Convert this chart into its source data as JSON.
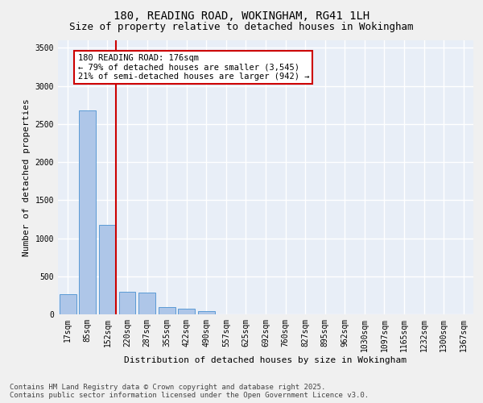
{
  "title": "180, READING ROAD, WOKINGHAM, RG41 1LH",
  "subtitle": "Size of property relative to detached houses in Wokingham",
  "xlabel": "Distribution of detached houses by size in Wokingham",
  "ylabel": "Number of detached properties",
  "categories": [
    "17sqm",
    "85sqm",
    "152sqm",
    "220sqm",
    "287sqm",
    "355sqm",
    "422sqm",
    "490sqm",
    "557sqm",
    "625sqm",
    "692sqm",
    "760sqm",
    "827sqm",
    "895sqm",
    "962sqm",
    "1030sqm",
    "1097sqm",
    "1165sqm",
    "1232sqm",
    "1300sqm",
    "1367sqm"
  ],
  "values": [
    260,
    2680,
    1180,
    300,
    290,
    100,
    70,
    45,
    0,
    0,
    0,
    0,
    0,
    0,
    0,
    0,
    0,
    0,
    0,
    0,
    0
  ],
  "bar_color": "#aec6e8",
  "bar_edge_color": "#5b9bd5",
  "vline_x_index": 2.42,
  "vline_color": "#cc0000",
  "annotation_text": "180 READING ROAD: 176sqm\n← 79% of detached houses are smaller (3,545)\n21% of semi-detached houses are larger (942) →",
  "annotation_box_color": "#ffffff",
  "annotation_box_edge_color": "#cc0000",
  "ylim": [
    0,
    3600
  ],
  "yticks": [
    0,
    500,
    1000,
    1500,
    2000,
    2500,
    3000,
    3500
  ],
  "background_color": "#e8eef7",
  "grid_color": "#ffffff",
  "footer_line1": "Contains HM Land Registry data © Crown copyright and database right 2025.",
  "footer_line2": "Contains public sector information licensed under the Open Government Licence v3.0.",
  "title_fontsize": 10,
  "subtitle_fontsize": 9,
  "xlabel_fontsize": 8,
  "ylabel_fontsize": 8,
  "tick_fontsize": 7,
  "footer_fontsize": 6.5,
  "annotation_fontsize": 7.5
}
